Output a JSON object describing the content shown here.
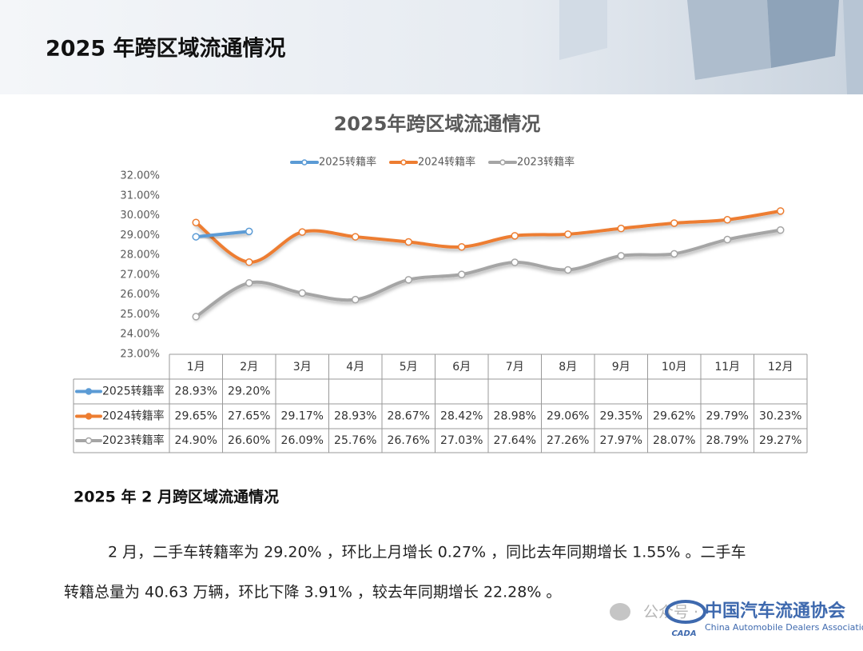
{
  "header": {
    "title": "2025 年跨区域流通情况"
  },
  "chart_data": {
    "type": "line",
    "title": "2025年跨区域流通情况",
    "categories": [
      "1月",
      "2月",
      "3月",
      "4月",
      "5月",
      "6月",
      "7月",
      "8月",
      "9月",
      "10月",
      "11月",
      "12月"
    ],
    "series": [
      {
        "name": "2025转籍率",
        "color": "#5b9bd5",
        "values": [
          28.93,
          29.2,
          null,
          null,
          null,
          null,
          null,
          null,
          null,
          null,
          null,
          null
        ],
        "value_labels": [
          "28.93%",
          "29.20%",
          null,
          null,
          null,
          null,
          null,
          null,
          null,
          null,
          null,
          null
        ]
      },
      {
        "name": "2024转籍率",
        "color": "#ed7d31",
        "values": [
          29.65,
          27.65,
          29.17,
          28.93,
          28.67,
          28.42,
          28.98,
          29.06,
          29.35,
          29.62,
          29.79,
          30.23
        ],
        "value_labels": [
          "29.65%",
          "27.65%",
          "29.17%",
          "28.93%",
          "28.67%",
          "28.42%",
          "28.98%",
          "29.06%",
          "29.35%",
          "29.62%",
          "29.79%",
          "30.23%"
        ]
      },
      {
        "name": "2023转籍率",
        "color": "#a5a5a5",
        "values": [
          24.9,
          26.6,
          26.09,
          25.76,
          26.76,
          27.03,
          27.64,
          27.26,
          27.97,
          28.07,
          28.79,
          29.27
        ],
        "value_labels": [
          "24.90%",
          "26.60%",
          "26.09%",
          "25.76%",
          "26.76%",
          "27.03%",
          "27.64%",
          "27.26%",
          "27.97%",
          "28.07%",
          "28.79%",
          "29.27%"
        ]
      }
    ],
    "ylim": [
      23,
      32
    ],
    "yticks": [
      {
        "value": 23,
        "label": "23.00%"
      },
      {
        "value": 24,
        "label": "24.00%"
      },
      {
        "value": 25,
        "label": "25.00%"
      },
      {
        "value": 26,
        "label": "26.00%"
      },
      {
        "value": 27,
        "label": "27.00%"
      },
      {
        "value": 28,
        "label": "28.00%"
      },
      {
        "value": 29,
        "label": "29.00%"
      },
      {
        "value": 30,
        "label": "30.00%"
      },
      {
        "value": 31,
        "label": "31.00%"
      },
      {
        "value": 32,
        "label": "32.00%"
      }
    ],
    "legend": "top",
    "grid": false,
    "data_table": true
  },
  "section_title": "2025 年 2 月跨区域流通情况",
  "paragraph": [
    "2 月，二手车转籍率为 29.20% ，环比上月增长 0.27% ，同比去年同期增长 1.55% 。二手车",
    "转籍总量为 40.63 万辆，环比下降 3.91% ，较去年同期增长 22.28% 。"
  ],
  "watermark": {
    "prefix": "公众号 ·",
    "org_cn": "中国汽车流通协会",
    "org_en": "China Automobile Dealers Association",
    "logo": "CADA"
  }
}
